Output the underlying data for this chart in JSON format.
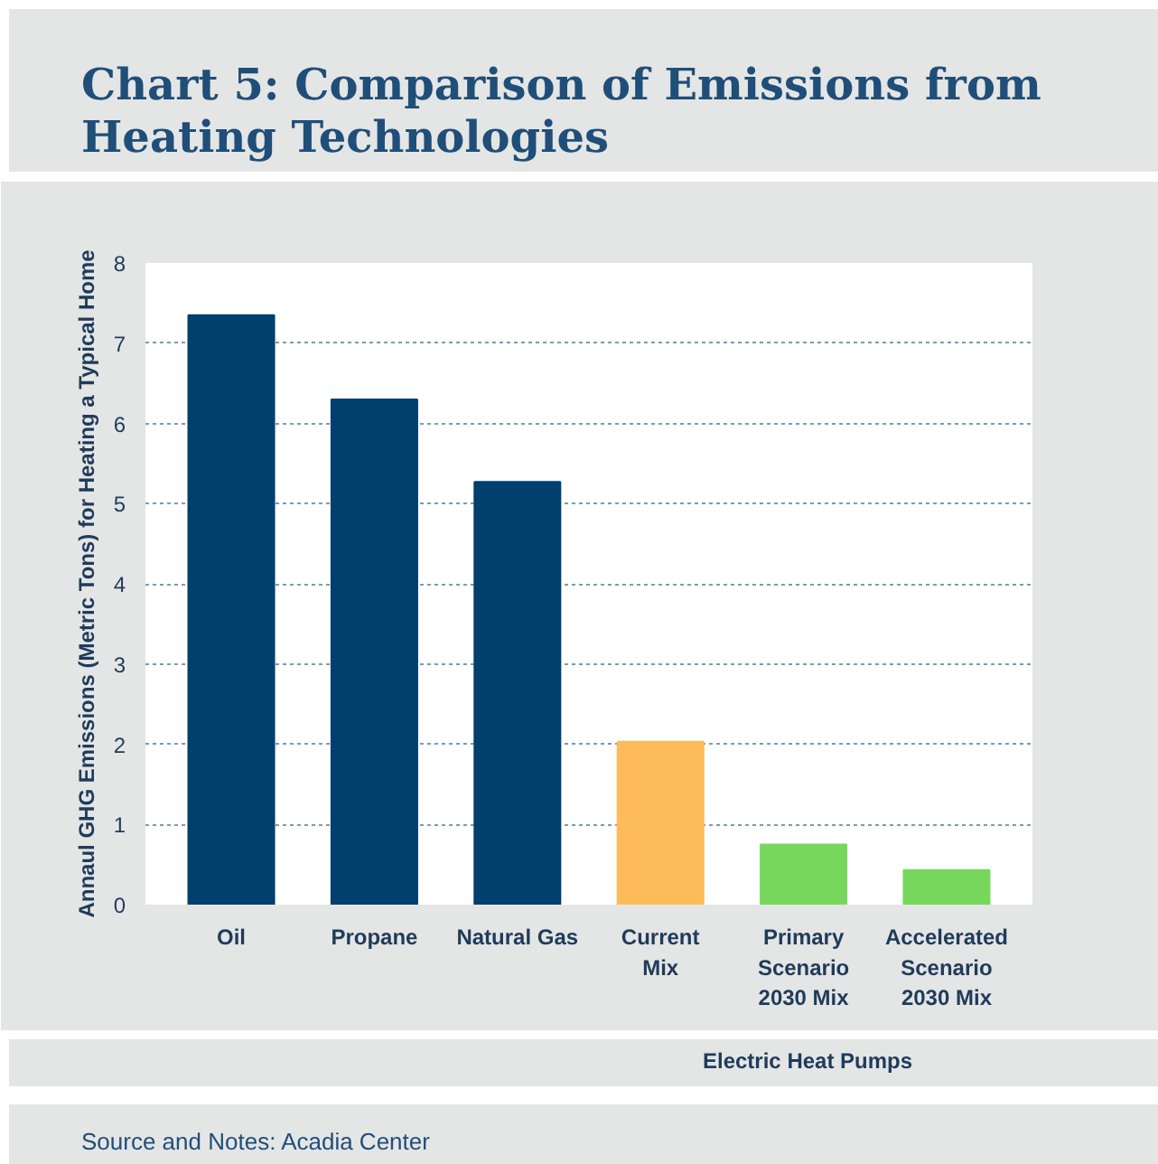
{
  "chart_data": {
    "type": "bar",
    "title": "Chart 5: Comparison of Emissions from Heating Technologies",
    "ylabel": "Annaul GHG Emissions (Metric Tons) for Heating a Typical Home",
    "categories": [
      "Oil",
      "Propane",
      "Natural Gas",
      "Current\nMix",
      "Primary\nScenario\n2030 Mix",
      "Accelerated\nScenario\n2030 Mix"
    ],
    "values": [
      7.35,
      6.3,
      5.27,
      2.03,
      0.75,
      0.43
    ],
    "colors": [
      "#003f6e",
      "#003f6e",
      "#003f6e",
      "#fdbb5a",
      "#77d75d",
      "#77d75d"
    ],
    "ylim": [
      0,
      8
    ],
    "yticks": [
      0,
      1,
      2,
      3,
      4,
      5,
      6,
      7,
      8
    ],
    "grid": "y",
    "annotations": [
      "Electric Heat Pumps",
      "Source and Notes: Acadia Center"
    ]
  }
}
